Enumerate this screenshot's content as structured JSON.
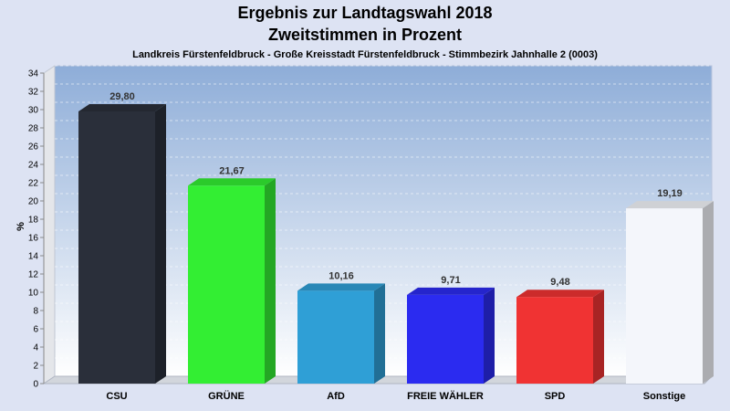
{
  "header": {
    "title_line1": "Ergebnis zur Landtagswahl 2018",
    "title_line2": "Zweitstimmen in Prozent",
    "subtitle": "Landkreis Fürstenfeldbruck - Große Kreisstadt Fürstenfeldbruck - Stimmbezirk Jahnhalle 2 (0003)"
  },
  "chart_data": {
    "type": "bar",
    "title": "Ergebnis zur Landtagswahl 2018",
    "subtitle": "Zweitstimmen in Prozent",
    "ylabel": "%",
    "ylim": [
      0,
      34
    ],
    "ytick_step": 2,
    "grid": true,
    "categories": [
      "CSU",
      "GRÜNE",
      "AfD",
      "FREIE WÄHLER",
      "SPD",
      "Sonstige"
    ],
    "values": [
      29.8,
      21.67,
      10.16,
      9.71,
      9.48,
      19.19
    ],
    "value_labels": [
      "29,80",
      "21,67",
      "10,16",
      "9,71",
      "9,48",
      "19,19"
    ],
    "colors": [
      "#2a2f3a",
      "#33ee33",
      "#2f9fd6",
      "#2b2bf0",
      "#f03333",
      "#f4f6fb"
    ]
  }
}
